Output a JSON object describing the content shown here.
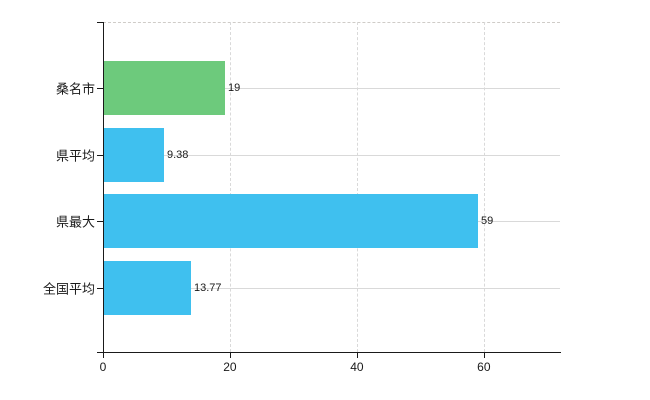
{
  "chart_data": {
    "type": "bar",
    "orientation": "horizontal",
    "title": "",
    "xlabel": "",
    "ylabel": "",
    "categories": [
      "桑名市",
      "県平均",
      "県最大",
      "全国平均"
    ],
    "values": [
      19,
      9.38,
      59,
      13.77
    ],
    "value_labels": [
      "19",
      "9.38",
      "59",
      "13.77"
    ],
    "bar_colors": [
      "#6dca7c",
      "#3fc0ef",
      "#3fc0ef",
      "#3fc0ef"
    ],
    "xticks": [
      0,
      20,
      40,
      60
    ],
    "xtick_labels": [
      "0",
      "20",
      "40",
      "60"
    ],
    "xlim": [
      0,
      72
    ],
    "grid": true,
    "legend": false,
    "colors": {
      "green_bar": "#6dca7c",
      "blue_bar": "#3fc0ef",
      "axis": "#1a1a1a",
      "gridline": "#d9d9d9",
      "top_border": "#cfccc8",
      "text": "#1a1a1a",
      "background": "#ffffff"
    }
  }
}
